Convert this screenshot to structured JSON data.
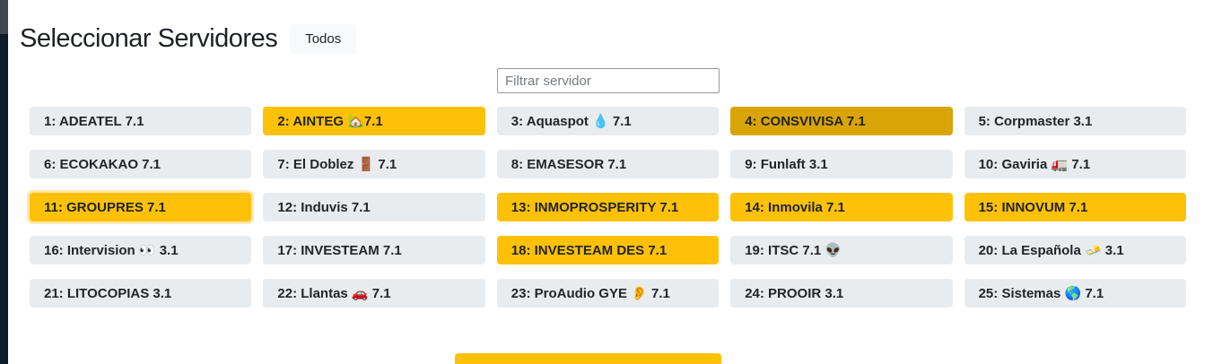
{
  "header": {
    "title": "Seleccionar Servidores",
    "todos_label": "Todos"
  },
  "filter": {
    "placeholder": "Filtrar servidor",
    "value": ""
  },
  "colors": {
    "selected_yellow": "#ffc107",
    "selected_dark_amber": "#d9a406",
    "default_gray": "#e9ecef",
    "text_dark": "#212529",
    "edge_strip_navy": "#0e1b2a",
    "edge_strip_gray": "#3e4750"
  },
  "servers": [
    {
      "label": "1: ADEATEL 7.1",
      "state": "default",
      "icon": "none"
    },
    {
      "label": "2: AINTEG 🏡7.1",
      "state": "active",
      "icon": "house-icon"
    },
    {
      "label": "3: Aquaspot 💧 7.1",
      "state": "default",
      "icon": "droplet-icon"
    },
    {
      "label": "4: CONSVIVISA 7.1",
      "state": "active-dark",
      "icon": "none"
    },
    {
      "label": "5: Corpmaster 3.1",
      "state": "default",
      "icon": "none"
    },
    {
      "label": "6: ECOKAKAO 7.1",
      "state": "default",
      "icon": "none"
    },
    {
      "label": "7: El Doblez 🚪 7.1",
      "state": "default",
      "icon": "door-icon"
    },
    {
      "label": "8: EMASESOR 7.1",
      "state": "default",
      "icon": "none"
    },
    {
      "label": "9: Funlaft 3.1",
      "state": "default",
      "icon": "none"
    },
    {
      "label": "10: Gaviria 🚛 7.1",
      "state": "default",
      "icon": "truck-icon"
    },
    {
      "label": "11: GROUPRES 7.1",
      "state": "active-focus",
      "icon": "none"
    },
    {
      "label": "12: Induvis 7.1",
      "state": "default",
      "icon": "none"
    },
    {
      "label": "13: INMOPROSPERITY 7.1",
      "state": "active",
      "icon": "none"
    },
    {
      "label": "14: Inmovila 7.1",
      "state": "active",
      "icon": "none"
    },
    {
      "label": "15: INNOVUM 7.1",
      "state": "active",
      "icon": "none"
    },
    {
      "label": "16: Intervision 👀 3.1",
      "state": "default",
      "icon": "eyes-icon"
    },
    {
      "label": "17: INVESTEAM 7.1",
      "state": "default",
      "icon": "none"
    },
    {
      "label": "18: INVESTEAM DES 7.1",
      "state": "active",
      "icon": "none"
    },
    {
      "label": "19: ITSC 7.1 👽",
      "state": "default",
      "icon": "alien-icon"
    },
    {
      "label": "20: La Española 🧈 3.1",
      "state": "default",
      "icon": "butter-icon"
    },
    {
      "label": "21: LITOCOPIAS 3.1",
      "state": "default",
      "icon": "none"
    },
    {
      "label": "22: Llantas 🚗 7.1",
      "state": "default",
      "icon": "car-icon"
    },
    {
      "label": "23: ProAudio GYE 👂 7.1",
      "state": "default",
      "icon": "ear-icon"
    },
    {
      "label": "24: PROOIR 3.1",
      "state": "default",
      "icon": "none"
    },
    {
      "label": "25: Sistemas 🌎 7.1",
      "state": "default",
      "icon": "globe-icon"
    }
  ]
}
